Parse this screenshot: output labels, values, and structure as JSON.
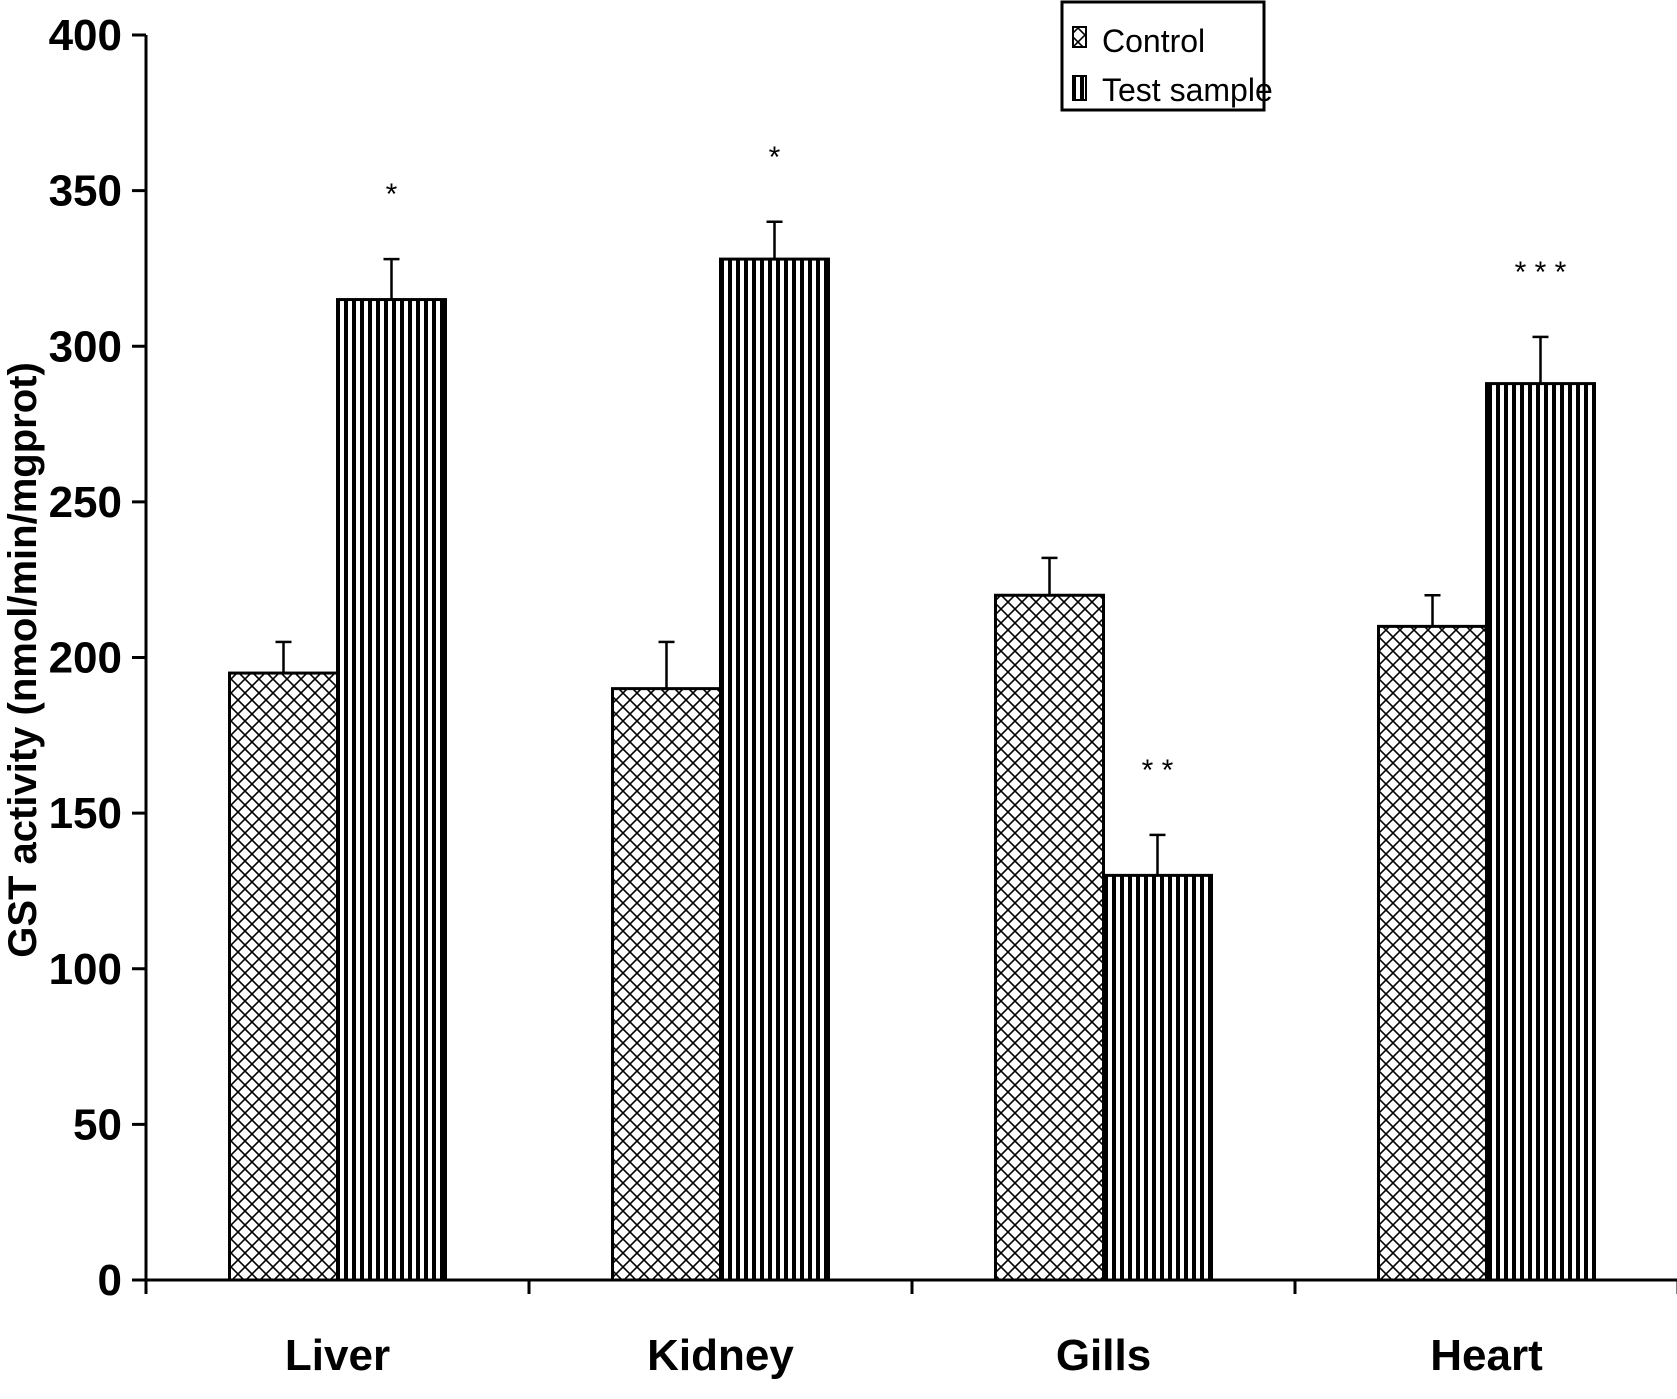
{
  "chart_data": {
    "type": "bar",
    "title": "",
    "xlabel": "",
    "ylabel": "GST activity (nmol/min/mgprot)",
    "ylim": [
      0,
      400
    ],
    "yticks": [
      0,
      50,
      100,
      150,
      200,
      250,
      300,
      350,
      400
    ],
    "categories": [
      "Liver",
      "Kidney",
      "Gills",
      "Heart"
    ],
    "series": [
      {
        "name": "Control",
        "pattern": "crosshatch",
        "values": [
          195,
          190,
          220,
          210
        ],
        "errors": [
          10,
          15,
          12,
          10
        ]
      },
      {
        "name": "Test sample",
        "pattern": "vertical",
        "values": [
          315,
          328,
          130,
          288
        ],
        "errors": [
          13,
          12,
          13,
          15
        ]
      }
    ],
    "annotations": [
      "*",
      "*",
      "* *",
      "* * *"
    ],
    "legend_position": "top-right",
    "grid": false
  }
}
